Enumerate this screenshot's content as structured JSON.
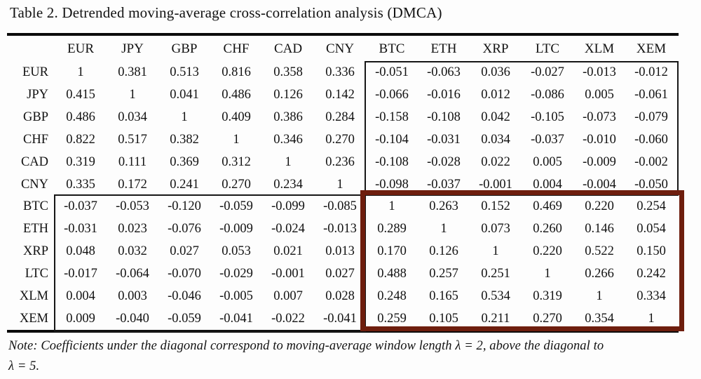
{
  "title": "Table 2. Detrended moving-average cross-correlation analysis (DMCA)",
  "table": {
    "columns": [
      "EUR",
      "JPY",
      "GBP",
      "CHF",
      "CAD",
      "CNY",
      "BTC",
      "ETH",
      "XRP",
      "LTC",
      "XLM",
      "XEM"
    ],
    "rows": [
      {
        "label": "EUR",
        "values": [
          "1",
          "0.381",
          "0.513",
          "0.816",
          "0.358",
          "0.336",
          "-0.051",
          "-0.063",
          "0.036",
          "-0.027",
          "-0.013",
          "-0.012"
        ]
      },
      {
        "label": "JPY",
        "values": [
          "0.415",
          "1",
          "0.041",
          "0.486",
          "0.126",
          "0.142",
          "-0.066",
          "-0.016",
          "0.012",
          "-0.086",
          "0.005",
          "-0.061"
        ]
      },
      {
        "label": "GBP",
        "values": [
          "0.486",
          "0.034",
          "1",
          "0.409",
          "0.386",
          "0.284",
          "-0.158",
          "-0.108",
          "0.042",
          "-0.105",
          "-0.073",
          "-0.079"
        ]
      },
      {
        "label": "CHF",
        "values": [
          "0.822",
          "0.517",
          "0.382",
          "1",
          "0.346",
          "0.270",
          "-0.104",
          "-0.031",
          "0.034",
          "-0.037",
          "-0.010",
          "-0.060"
        ]
      },
      {
        "label": "CAD",
        "values": [
          "0.319",
          "0.111",
          "0.369",
          "0.312",
          "1",
          "0.236",
          "-0.108",
          "-0.028",
          "0.022",
          "0.005",
          "-0.009",
          "-0.002"
        ]
      },
      {
        "label": "CNY",
        "values": [
          "0.335",
          "0.172",
          "0.241",
          "0.270",
          "0.234",
          "1",
          "-0.098",
          "-0.037",
          "-0.001",
          "0.004",
          "-0.004",
          "-0.050"
        ]
      },
      {
        "label": "BTC",
        "values": [
          "-0.037",
          "-0.053",
          "-0.120",
          "-0.059",
          "-0.099",
          "-0.085",
          "1",
          "0.263",
          "0.152",
          "0.469",
          "0.220",
          "0.254"
        ]
      },
      {
        "label": "ETH",
        "values": [
          "-0.031",
          "0.023",
          "-0.076",
          "-0.009",
          "-0.024",
          "-0.013",
          "0.289",
          "1",
          "0.073",
          "0.260",
          "0.146",
          "0.054"
        ]
      },
      {
        "label": "XRP",
        "values": [
          "0.048",
          "0.032",
          "0.027",
          "0.053",
          "0.021",
          "0.013",
          "0.170",
          "0.126",
          "1",
          "0.220",
          "0.522",
          "0.150"
        ]
      },
      {
        "label": "LTC",
        "values": [
          "-0.017",
          "-0.064",
          "-0.070",
          "-0.029",
          "-0.001",
          "0.027",
          "0.488",
          "0.257",
          "0.251",
          "1",
          "0.266",
          "0.242"
        ]
      },
      {
        "label": "XLM",
        "values": [
          "0.004",
          "0.003",
          "-0.046",
          "-0.005",
          "0.007",
          "0.028",
          "0.248",
          "0.165",
          "0.534",
          "0.319",
          "1",
          "0.334"
        ]
      },
      {
        "label": "XEM",
        "values": [
          "0.009",
          "-0.040",
          "-0.059",
          "-0.041",
          "-0.022",
          "-0.041",
          "0.259",
          "0.105",
          "0.211",
          "0.270",
          "0.354",
          "1"
        ]
      }
    ]
  },
  "highlights": {
    "fiat_crypto_box_color": "#161616",
    "crypto_crypto_box_color": "#6e1e0e"
  },
  "note": {
    "line1": "Note: Coefficients under the diagonal correspond to moving-average window length λ = 2, above the diagonal to",
    "line2": "λ = 5."
  }
}
